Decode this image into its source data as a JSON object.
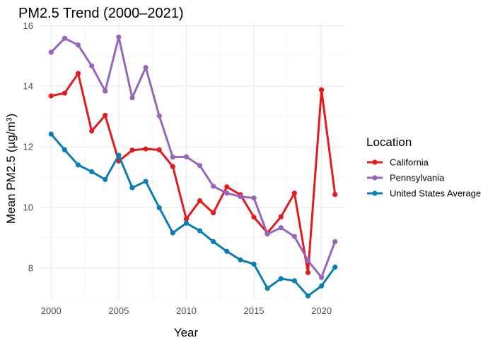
{
  "chart_data": {
    "type": "line",
    "title": "PM2.5 Trend (2000–2021)",
    "xlabel": "Year",
    "ylabel": "Mean PM2.5 (µg/m³)",
    "xlim": [
      1999.2,
      2021.8
    ],
    "ylim": [
      6.95,
      16.1
    ],
    "x_ticks": [
      2000,
      2005,
      2010,
      2015,
      2020
    ],
    "y_ticks": [
      8,
      10,
      12,
      14,
      16
    ],
    "x": [
      2000,
      2001,
      2002,
      2003,
      2004,
      2005,
      2006,
      2007,
      2008,
      2009,
      2010,
      2011,
      2012,
      2013,
      2014,
      2015,
      2016,
      2017,
      2018,
      2019,
      2020,
      2021
    ],
    "legend_title": "Location",
    "legend_position": "right",
    "series": [
      {
        "name": "California",
        "color": "#e41a1c",
        "values": [
          13.68,
          13.77,
          14.42,
          12.52,
          13.04,
          11.53,
          11.89,
          11.93,
          11.9,
          11.35,
          9.62,
          10.22,
          9.82,
          10.68,
          10.42,
          9.68,
          9.16,
          9.69,
          10.47,
          7.85,
          13.88,
          10.43
        ]
      },
      {
        "name": "Pennsylvania",
        "color": "#9467bd",
        "values": [
          15.12,
          15.58,
          15.36,
          14.67,
          13.84,
          15.62,
          13.62,
          14.62,
          13.02,
          11.66,
          11.67,
          11.38,
          10.7,
          10.47,
          10.36,
          10.31,
          9.12,
          9.33,
          9.04,
          8.25,
          7.69,
          8.87
        ]
      },
      {
        "name": "United States Average",
        "color": "#0a7eb4",
        "values": [
          12.42,
          11.9,
          11.4,
          11.18,
          10.92,
          11.72,
          10.65,
          10.86,
          9.99,
          9.16,
          9.48,
          9.23,
          8.87,
          8.55,
          8.27,
          8.13,
          7.33,
          7.65,
          7.58,
          7.08,
          7.41,
          8.03
        ]
      }
    ]
  }
}
